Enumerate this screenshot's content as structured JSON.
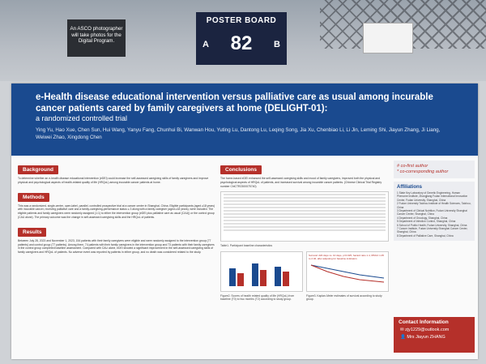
{
  "booth": {
    "asco_note": "An ASCO photographer will take photos for the Digital Program.",
    "board_label": "POSTER BOARD",
    "side_a": "A",
    "side_b": "B",
    "board_number": "82"
  },
  "poster": {
    "title": "e-Health disease educational intervention versus palliative care as usual among incurable cancer patients cared by family caregivers at home (DELIGHT-01):",
    "subtitle": "a randomized controlled trial",
    "authors": "Ying Yu, Hao Xue, Chen Sun, Hui Wang, Yanyu Fang, Chunhui Bi, Wanwan Hou, Yuting Lu, Dantong Lu, Leqing Song, Jia Xu, Chenbiao Li, Li Jin, Leming Shi, Jiayun Zhang, Ji Liang, Weiwei Zhao, Xingdong Chen",
    "sections": {
      "background": "Background",
      "methods": "Methods",
      "results": "Results",
      "conclusions": "Conclusions"
    },
    "background_text": "To determine whether an e-health disease educational intervention (eDEI) could increase the self-assessed caregiving skills of family caregivers and improve physical and psychological aspects of health-related quality of life (HRQoL) among incurable cancer patients at home.",
    "methods_text": "This was a randomized, single-center, open-label, parallel, controlled prospective trial at a cancer center in Shanghai, China. Eligible participants (aged ≥18 years) with incurable cancer, receiving palliative care and a family-caregiving-performance status ≤ 3 along with a family caregiver (aged ≥18 years), were included. The eligible patients and family caregivers were randomly assigned (1:1) to either the intervention group (eDEI plus palliative care as usual (CAU)) or the control group (CAU alone). The primary outcome was the change in self-assessed caregiving skills and the HRQoL of patients.",
    "results_text": "Between July 28, 2023 and November 1, 2023, 154 patients with their family caregivers were eligible and were randomly assigned to the intervention group (77 patients) and control group (77 patients). Among them, 74 patients with their family caregivers in the intervention group and 73 patients with their family caregivers in the control group completed baseline assessment. Compared with CAU alone, eDEI showed a significant improvement in the self-assessed caregiving skills of family caregivers and HRQoL of patients. No adverse event was reported by patients in either group, and no death was considered related to the study.",
    "conclusions_text": "The home-based eDEI enhanced the self-assessed caregiving skills and mood of family caregivers, improved both the physical and psychological aspects of HRQoL of patients, and increased survival among incurable cancer patients. (Chinese Clinical Trial Registry number ChiCTR2300075740)",
    "table_caption": "Table1. Participant baseline characteristics",
    "figure2_caption": "Figure2. Scores of health related quality of life (HRQoL) from baseline (T0) to two months (T2) according to study group.",
    "figure3_caption": "Figure3. Kaplan-Meier estimates of survival according to study group.",
    "figure3_note": "Survival: 220 days vs. 10 days, p=0.025, hazard ratio 1.4, 95%CI 1.05 to 2.46, after adjusting for baseline indicators",
    "co_first": "# co-first author",
    "corresponding": "* co-corresponding author",
    "affiliations_label": "Affiliations",
    "affiliations": [
      "1 State Key Laboratory of Genetic Engineering, Human Phenome Institute, Zhangjiang Fudan International Innovation Center, Fudan University, Shanghai, China",
      "2 Fudan University Taizhou Institute of Health Sciences, Taizhou, China",
      "3 Department of Clinical Nutrition, Fudan University Shanghai Cancer Center, Shanghai, China",
      "4 Department of Oncology, Shanghai, China",
      "5 Department of Infection Control, Shanghai, China",
      "6 School of Public Health, Fudan University, Shanghai, China",
      "7 Cancer Institute, Fudan University Shanghai Cancer Center, Shanghai, China",
      "8 Department of Palliative Care, Shanghai, China"
    ],
    "contact_label": "Contact Information",
    "contact_email": "zjy1229@outlook.com",
    "contact_name": "Mrs Jiayun ZHANG"
  }
}
